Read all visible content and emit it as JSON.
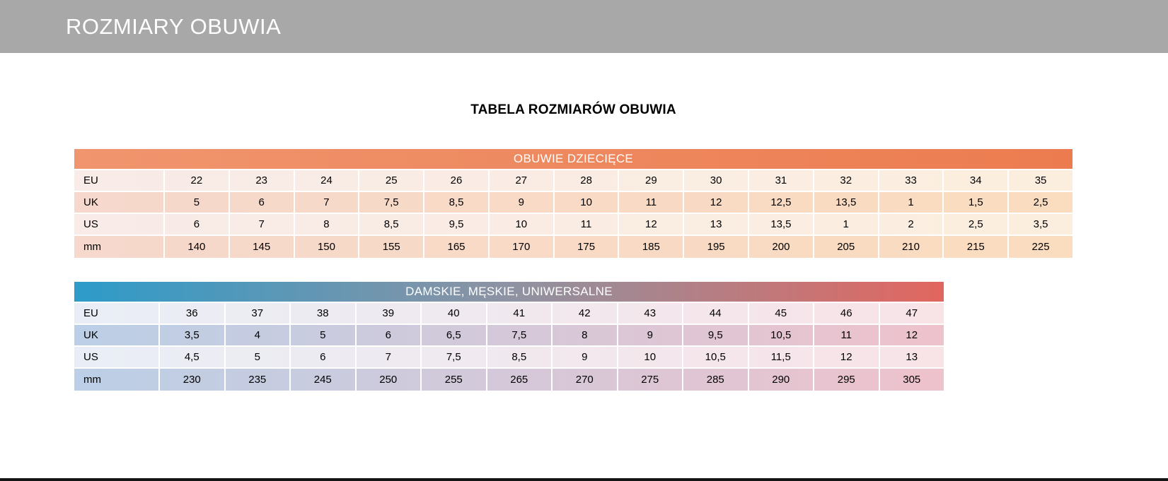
{
  "banner": {
    "title": "ROZMIARY OBUWIA",
    "background": "#a8a8a8"
  },
  "page_title": "TABELA ROZMIARÓW OBUWIA",
  "footer_bar_color": "#151515",
  "chart_data": [
    {
      "type": "table",
      "title": "OBUWIE DZIECIĘCE",
      "header_colors": [
        "#f0956e",
        "#ec7c50"
      ],
      "row_colors": {
        "light": [
          "#f8ebe8",
          "#fceede"
        ],
        "dark": [
          "#f6d8cc",
          "#fadcbf"
        ]
      },
      "row_labels": [
        "EU",
        "UK",
        "US",
        "mm"
      ],
      "rows": [
        [
          "22",
          "23",
          "24",
          "25",
          "26",
          "27",
          "28",
          "29",
          "30",
          "31",
          "32",
          "33",
          "34",
          "35"
        ],
        [
          "5",
          "6",
          "7",
          "7,5",
          "8,5",
          "9",
          "10",
          "11",
          "12",
          "12,5",
          "13,5",
          "1",
          "1,5",
          "2,5"
        ],
        [
          "6",
          "7",
          "8",
          "8,5",
          "9,5",
          "10",
          "11",
          "12",
          "13",
          "13,5",
          "1",
          "2",
          "2,5",
          "3,5"
        ],
        [
          "140",
          "145",
          "150",
          "155",
          "165",
          "170",
          "175",
          "185",
          "195",
          "200",
          "205",
          "210",
          "215",
          "225"
        ]
      ]
    },
    {
      "type": "table",
      "title": "DAMSKIE, MĘSKIE, UNIWERSALNE",
      "header_colors": [
        "#2d9bc9",
        "#8e93a3",
        "#e2665f"
      ],
      "row_colors": {
        "light": [
          "#e9eef6",
          "#f8e3e7"
        ],
        "dark": [
          "#bbcfe6",
          "#eec2cc"
        ]
      },
      "row_labels": [
        "EU",
        "UK",
        "US",
        "mm"
      ],
      "rows": [
        [
          "36",
          "37",
          "38",
          "39",
          "40",
          "41",
          "42",
          "43",
          "44",
          "45",
          "46",
          "47"
        ],
        [
          "3,5",
          "4",
          "5",
          "6",
          "6,5",
          "7,5",
          "8",
          "9",
          "9,5",
          "10,5",
          "11",
          "12"
        ],
        [
          "4,5",
          "5",
          "6",
          "7",
          "7,5",
          "8,5",
          "9",
          "10",
          "10,5",
          "11,5",
          "12",
          "13"
        ],
        [
          "230",
          "235",
          "245",
          "250",
          "255",
          "265",
          "270",
          "275",
          "285",
          "290",
          "295",
          "305"
        ]
      ]
    }
  ]
}
